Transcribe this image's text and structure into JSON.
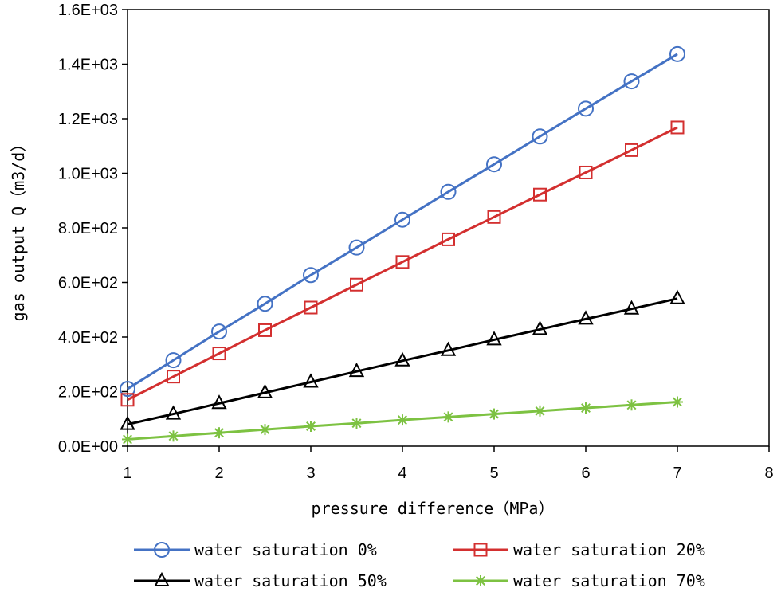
{
  "chart_data": {
    "type": "line",
    "title": "",
    "xlabel": "pressure difference（MPa）",
    "ylabel": "gas output Q（m3/d）",
    "xlim": [
      1,
      8
    ],
    "ylim": [
      0,
      1600
    ],
    "x_ticks": [
      "1",
      "2",
      "3",
      "4",
      "5",
      "6",
      "7",
      "8"
    ],
    "y_ticks": [
      "0.0E+00",
      "2.0E+02",
      "4.0E+02",
      "6.0E+02",
      "8.0E+02",
      "1.0E+03",
      "1.2E+03",
      "1.4E+03",
      "1.6E+03"
    ],
    "grid": false,
    "legend_position": "bottom",
    "x": [
      1,
      1.5,
      2,
      2.5,
      3,
      3.5,
      4,
      4.5,
      5,
      5.5,
      6,
      6.5,
      7
    ],
    "series": [
      {
        "name": "water saturation 0%",
        "color": "#4472C4",
        "marker": "circle",
        "values": [
          210,
          315,
          420,
          522,
          627,
          728,
          830,
          932,
          1033,
          1135,
          1237,
          1337,
          1437
        ]
      },
      {
        "name": "water saturation 20%",
        "color": "#D32F2F",
        "marker": "square",
        "values": [
          170,
          255,
          340,
          425,
          508,
          592,
          675,
          758,
          840,
          922,
          1003,
          1085,
          1168
        ]
      },
      {
        "name": "water saturation 50%",
        "color": "#000000",
        "marker": "triangle",
        "values": [
          80,
          118,
          157,
          196,
          235,
          274,
          313,
          351,
          390,
          428,
          466,
          503,
          541
        ]
      },
      {
        "name": "water saturation 70%",
        "color": "#7DC242",
        "marker": "star",
        "values": [
          25,
          37,
          49,
          61,
          73,
          84,
          96,
          107,
          118,
          129,
          140,
          151,
          162
        ]
      }
    ]
  }
}
